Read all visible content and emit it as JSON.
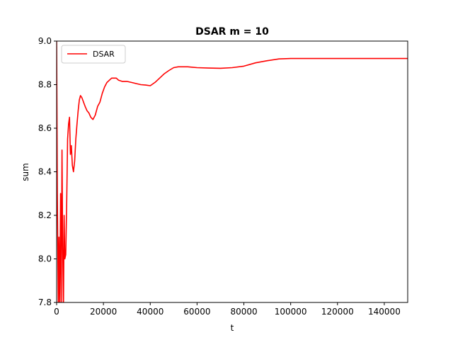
{
  "chart_data": {
    "type": "line",
    "title": "DSAR m = 10",
    "xlabel": "t",
    "ylabel": "sum",
    "xlim": [
      0,
      150000
    ],
    "ylim": [
      7.8,
      9.0
    ],
    "xticks": [
      0,
      20000,
      40000,
      60000,
      80000,
      100000,
      120000,
      140000
    ],
    "xtick_labels": [
      "0",
      "20000",
      "40000",
      "60000",
      "80000",
      "100000",
      "120000",
      "140000"
    ],
    "yticks": [
      7.8,
      8.0,
      8.2,
      8.4,
      8.6,
      8.8,
      9.0
    ],
    "ytick_labels": [
      "7.8",
      "8.0",
      "8.2",
      "8.4",
      "8.6",
      "8.8",
      "9.0"
    ],
    "grid": false,
    "legend": {
      "position": "top-left",
      "entries": [
        "DSAR"
      ]
    },
    "series": [
      {
        "name": "DSAR",
        "color": "#ff0000",
        "x": [
          0,
          300,
          700,
          1000,
          1300,
          1700,
          2000,
          2300,
          2600,
          2900,
          3200,
          3500,
          3900,
          4300,
          4700,
          5100,
          5500,
          5900,
          6300,
          6700,
          7200,
          7700,
          8200,
          8700,
          9200,
          9700,
          10200,
          10800,
          11500,
          12200,
          13000,
          13800,
          14600,
          15500,
          16500,
          17500,
          18500,
          19500,
          20500,
          21500,
          22500,
          23500,
          24500,
          25500,
          26500,
          28000,
          30000,
          32000,
          34000,
          36000,
          38000,
          40000,
          42000,
          44000,
          46000,
          48000,
          50000,
          52000,
          54000,
          56000,
          58000,
          60000,
          65000,
          70000,
          75000,
          80000,
          85000,
          90000,
          95000,
          100000,
          105000,
          110000,
          115000,
          120000,
          125000,
          130000,
          140000,
          150000
        ],
        "values": [
          9.0,
          8.3,
          7.8,
          8.1,
          7.75,
          8.3,
          7.8,
          8.5,
          8.05,
          7.75,
          8.2,
          8.0,
          8.02,
          8.25,
          8.55,
          8.62,
          8.65,
          8.48,
          8.52,
          8.43,
          8.4,
          8.45,
          8.55,
          8.62,
          8.68,
          8.73,
          8.75,
          8.74,
          8.72,
          8.7,
          8.68,
          8.67,
          8.65,
          8.64,
          8.66,
          8.7,
          8.72,
          8.76,
          8.79,
          8.81,
          8.82,
          8.83,
          8.83,
          8.83,
          8.82,
          8.815,
          8.815,
          8.81,
          8.805,
          8.8,
          8.798,
          8.795,
          8.81,
          8.83,
          8.85,
          8.865,
          8.878,
          8.882,
          8.882,
          8.882,
          8.88,
          8.878,
          8.876,
          8.875,
          8.878,
          8.885,
          8.9,
          8.91,
          8.918,
          8.92,
          8.92,
          8.92,
          8.92,
          8.92,
          8.92,
          8.92,
          8.92,
          8.92
        ]
      }
    ]
  }
}
